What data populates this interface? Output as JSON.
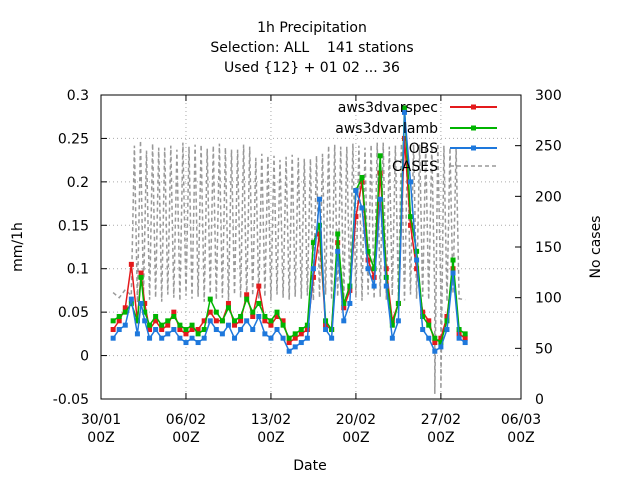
{
  "chart_data": {
    "type": "line",
    "title": [
      "1h Precipitation",
      "Selection: ALL    141 stations",
      "Used {12} + 01 02 ... 36"
    ],
    "xlabel": "Date",
    "ylabel": "mm/1h",
    "y2label": "No cases",
    "x_range_days": [
      0,
      34
    ],
    "ylim": [
      -0.05,
      0.3
    ],
    "y2lim": [
      0,
      300
    ],
    "x_ticks": [
      {
        "day": 0,
        "line1": "30/01",
        "line2": "00Z"
      },
      {
        "day": 7,
        "line1": "06/02",
        "line2": "00Z"
      },
      {
        "day": 14,
        "line1": "13/02",
        "line2": "00Z"
      },
      {
        "day": 21,
        "line1": "20/02",
        "line2": "00Z"
      },
      {
        "day": 28,
        "line1": "27/02",
        "line2": "00Z"
      },
      {
        "day": 35,
        "line1": "06/03",
        "line2": "00Z"
      }
    ],
    "y_ticks": [
      "-0.05",
      "0",
      "0.05",
      "0.1",
      "0.15",
      "0.2",
      "0.25",
      "0.3"
    ],
    "y2_ticks": [
      "0",
      "50",
      "100",
      "150",
      "200",
      "250",
      "300"
    ],
    "grid": true,
    "legend_position": "top-right",
    "series": [
      {
        "name": "aws3dvarspec",
        "color": "#e41a1c",
        "axis": "left",
        "x_days": [
          1.0,
          1.5,
          2.0,
          2.5,
          3.0,
          3.3,
          3.6,
          4.0,
          4.5,
          5.0,
          5.5,
          6.0,
          6.5,
          7.0,
          7.5,
          8.0,
          8.5,
          9.0,
          9.5,
          10.0,
          10.5,
          11.0,
          11.5,
          12.0,
          12.5,
          13.0,
          13.5,
          14.0,
          14.5,
          15.0,
          15.5,
          16.0,
          16.5,
          17.0,
          17.5,
          18.0,
          18.5,
          19.0,
          19.5,
          20.0,
          20.5,
          21.0,
          21.5,
          22.0,
          22.5,
          23.0,
          23.5,
          24.0,
          24.5,
          25.0,
          25.5,
          26.0,
          26.5,
          27.0,
          27.5,
          28.0,
          28.5,
          29.0,
          29.5,
          30.0
        ],
        "values": [
          0.03,
          0.04,
          0.055,
          0.105,
          0.04,
          0.095,
          0.06,
          0.03,
          0.04,
          0.03,
          0.035,
          0.05,
          0.03,
          0.025,
          0.03,
          0.03,
          0.04,
          0.05,
          0.04,
          0.04,
          0.06,
          0.035,
          0.04,
          0.07,
          0.045,
          0.08,
          0.04,
          0.035,
          0.045,
          0.04,
          0.015,
          0.02,
          0.025,
          0.03,
          0.09,
          0.14,
          0.035,
          0.03,
          0.13,
          0.055,
          0.075,
          0.16,
          0.2,
          0.11,
          0.09,
          0.21,
          0.1,
          0.04,
          0.06,
          0.25,
          0.15,
          0.1,
          0.05,
          0.04,
          0.015,
          0.02,
          0.045,
          0.1,
          0.025,
          0.02
        ]
      },
      {
        "name": "aws3dvarlamb",
        "color": "#00b400",
        "axis": "left",
        "x_days": [
          1.0,
          1.5,
          2.0,
          2.5,
          3.0,
          3.3,
          3.6,
          4.0,
          4.5,
          5.0,
          5.5,
          6.0,
          6.5,
          7.0,
          7.5,
          8.0,
          8.5,
          9.0,
          9.5,
          10.0,
          10.5,
          11.0,
          11.5,
          12.0,
          12.5,
          13.0,
          13.5,
          14.0,
          14.5,
          15.0,
          15.5,
          16.0,
          16.5,
          17.0,
          17.5,
          18.0,
          18.5,
          19.0,
          19.5,
          20.0,
          20.5,
          21.0,
          21.5,
          22.0,
          22.5,
          23.0,
          23.5,
          24.0,
          24.5,
          25.0,
          25.5,
          26.0,
          26.5,
          27.0,
          27.5,
          28.0,
          28.5,
          29.0,
          29.5,
          30.0
        ],
        "values": [
          0.04,
          0.045,
          0.05,
          0.06,
          0.04,
          0.09,
          0.05,
          0.035,
          0.045,
          0.035,
          0.04,
          0.045,
          0.035,
          0.03,
          0.035,
          0.025,
          0.03,
          0.065,
          0.05,
          0.04,
          0.055,
          0.04,
          0.045,
          0.065,
          0.05,
          0.06,
          0.045,
          0.04,
          0.05,
          0.035,
          0.02,
          0.025,
          0.03,
          0.035,
          0.13,
          0.15,
          0.04,
          0.03,
          0.14,
          0.06,
          0.08,
          0.19,
          0.205,
          0.12,
          0.1,
          0.23,
          0.09,
          0.035,
          0.06,
          0.285,
          0.16,
          0.12,
          0.045,
          0.035,
          0.02,
          0.015,
          0.04,
          0.11,
          0.03,
          0.025
        ]
      },
      {
        "name": "OBS",
        "color": "#1e78dc",
        "axis": "left",
        "x_days": [
          1.0,
          1.5,
          2.0,
          2.5,
          3.0,
          3.3,
          3.6,
          4.0,
          4.5,
          5.0,
          5.5,
          6.0,
          6.5,
          7.0,
          7.5,
          8.0,
          8.5,
          9.0,
          9.5,
          10.0,
          10.5,
          11.0,
          11.5,
          12.0,
          12.5,
          13.0,
          13.5,
          14.0,
          14.5,
          15.0,
          15.5,
          16.0,
          16.5,
          17.0,
          17.5,
          18.0,
          18.5,
          19.0,
          19.5,
          20.0,
          20.5,
          21.0,
          21.5,
          22.0,
          22.5,
          23.0,
          23.5,
          24.0,
          24.5,
          25.0,
          25.5,
          26.0,
          26.5,
          27.0,
          27.5,
          28.0,
          28.5,
          29.0,
          29.5,
          30.0
        ],
        "values": [
          0.02,
          0.03,
          0.035,
          0.065,
          0.025,
          0.06,
          0.04,
          0.02,
          0.03,
          0.02,
          0.025,
          0.03,
          0.02,
          0.015,
          0.02,
          0.015,
          0.02,
          0.04,
          0.03,
          0.025,
          0.035,
          0.02,
          0.03,
          0.04,
          0.03,
          0.045,
          0.025,
          0.02,
          0.03,
          0.02,
          0.005,
          0.01,
          0.015,
          0.02,
          0.1,
          0.18,
          0.03,
          0.02,
          0.12,
          0.04,
          0.06,
          0.19,
          0.17,
          0.1,
          0.08,
          0.18,
          0.08,
          0.02,
          0.04,
          0.28,
          0.2,
          0.11,
          0.03,
          0.02,
          0.005,
          0.01,
          0.03,
          0.095,
          0.02,
          0.015
        ]
      },
      {
        "name": "CASES",
        "color": "#999999",
        "axis": "right",
        "dashed": true,
        "low_days": [
          1.0,
          1.5,
          2.0,
          2.5,
          3.0,
          3.5,
          4.0,
          4.5,
          5.0,
          5.5,
          6.0,
          6.5,
          7.0,
          7.5,
          8.0,
          8.5,
          9.0,
          9.5,
          10.0,
          10.5,
          11.0,
          11.5,
          12.0,
          12.5,
          13.0,
          13.5,
          14.0,
          14.5,
          15.0,
          15.5,
          16.0,
          16.5,
          17.0,
          17.5,
          18.0,
          18.5,
          19.0,
          19.5,
          20.0,
          20.5,
          21.0,
          21.5,
          22.0,
          22.5,
          23.0,
          23.5,
          24.0,
          24.5,
          25.0,
          25.5,
          26.0,
          26.5,
          27.0,
          27.5,
          28.0,
          28.5,
          29.0,
          29.5,
          30.0
        ],
        "low_values": [
          105,
          100,
          108,
          102,
          95,
          104,
          98,
          100,
          96,
          103,
          100,
          97,
          102,
          99,
          101,
          96,
          104,
          98,
          100,
          97,
          103,
          100,
          98,
          102,
          99,
          101,
          97,
          103,
          100,
          98,
          101,
          99,
          102,
          97,
          100,
          103,
          98,
          101,
          99,
          102,
          100,
          97,
          103,
          99,
          101,
          98,
          102,
          100,
          97,
          103,
          99,
          101,
          98,
          102,
          100,
          96,
          104,
          99,
          98
        ],
        "high_days": [
          2.6,
          3.2,
          3.8,
          4.4,
          5.0,
          5.6,
          6.2,
          6.8,
          7.4,
          8.0,
          8.6,
          9.2,
          9.8,
          10.4,
          11.0,
          11.6,
          12.2,
          12.8,
          13.4,
          14.0,
          14.6,
          15.2,
          15.8,
          16.4,
          17.0,
          17.6,
          18.2,
          18.8,
          19.4,
          20.0,
          20.6,
          21.2,
          21.8,
          22.4,
          23.0,
          23.6,
          24.2,
          24.8,
          25.4,
          26.0,
          26.6,
          27.2,
          27.8,
          28.4,
          29.0
        ],
        "high_values": [
          250,
          255,
          245,
          252,
          248,
          250,
          246,
          253,
          249,
          251,
          247,
          250,
          252,
          248,
          246,
          251,
          249,
          238,
          242,
          240,
          236,
          239,
          241,
          238,
          237,
          240,
          242,
          250,
          251,
          249,
          252,
          250,
          248,
          251,
          253,
          249,
          250,
          252,
          248,
          251,
          250,
          249,
          252,
          250,
          248
        ],
        "dips": [
          {
            "day": 27.5,
            "value": 5
          },
          {
            "day": 28.0,
            "value": 10
          }
        ]
      }
    ]
  }
}
